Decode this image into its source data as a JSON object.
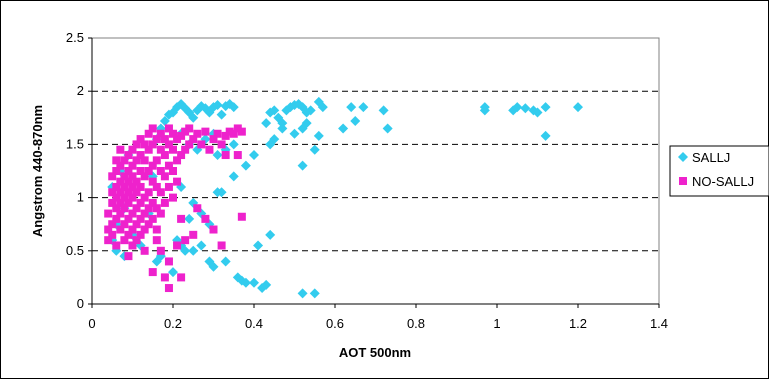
{
  "chart_data": {
    "type": "scatter",
    "title": "",
    "xlabel": "AOT 500nm",
    "ylabel": "Angstrom 440-870nm",
    "xlim": [
      0,
      1.4
    ],
    "ylim": [
      0,
      2.5
    ],
    "x_ticks": [
      "0",
      "0.2",
      "0.4",
      "0.6",
      "0.8",
      "1",
      "1.2",
      "1.4"
    ],
    "y_ticks": [
      "0",
      "0.5",
      "1",
      "1.5",
      "2",
      "2.5"
    ],
    "grid": "horizontal dashed",
    "legend_position": "right",
    "series": [
      {
        "name": "SALLJ",
        "color": "#33CCEE",
        "marker": "diamond",
        "points": [
          [
            0.05,
            0.6
          ],
          [
            0.06,
            0.75
          ],
          [
            0.05,
            1.1
          ],
          [
            0.07,
            1.25
          ],
          [
            0.08,
            0.9
          ],
          [
            0.09,
            1.4
          ],
          [
            0.1,
            0.65
          ],
          [
            0.06,
            0.5
          ],
          [
            0.08,
            0.45
          ],
          [
            0.12,
            0.55
          ],
          [
            0.14,
            0.85
          ],
          [
            0.15,
            1.2
          ],
          [
            0.16,
            1.55
          ],
          [
            0.17,
            1.65
          ],
          [
            0.18,
            1.72
          ],
          [
            0.19,
            1.78
          ],
          [
            0.2,
            1.8
          ],
          [
            0.21,
            1.85
          ],
          [
            0.22,
            1.88
          ],
          [
            0.23,
            1.84
          ],
          [
            0.24,
            1.8
          ],
          [
            0.25,
            1.75
          ],
          [
            0.26,
            1.82
          ],
          [
            0.27,
            1.86
          ],
          [
            0.28,
            1.84
          ],
          [
            0.29,
            1.8
          ],
          [
            0.3,
            1.85
          ],
          [
            0.31,
            1.87
          ],
          [
            0.32,
            1.78
          ],
          [
            0.33,
            1.86
          ],
          [
            0.34,
            1.88
          ],
          [
            0.35,
            1.85
          ],
          [
            0.22,
            1.6
          ],
          [
            0.24,
            1.5
          ],
          [
            0.26,
            1.45
          ],
          [
            0.28,
            1.55
          ],
          [
            0.3,
            1.6
          ],
          [
            0.31,
            1.4
          ],
          [
            0.33,
            1.45
          ],
          [
            0.35,
            1.5
          ],
          [
            0.22,
            1.1
          ],
          [
            0.25,
            0.95
          ],
          [
            0.27,
            0.85
          ],
          [
            0.29,
            0.75
          ],
          [
            0.31,
            1.05
          ],
          [
            0.32,
            1.05
          ],
          [
            0.24,
            0.8
          ],
          [
            0.21,
            0.6
          ],
          [
            0.22,
            0.55
          ],
          [
            0.23,
            0.5
          ],
          [
            0.25,
            0.5
          ],
          [
            0.27,
            0.55
          ],
          [
            0.29,
            0.4
          ],
          [
            0.2,
            0.3
          ],
          [
            0.17,
            0.45
          ],
          [
            0.16,
            0.4
          ],
          [
            0.3,
            0.35
          ],
          [
            0.33,
            0.4
          ],
          [
            0.36,
            0.25
          ],
          [
            0.37,
            0.22
          ],
          [
            0.38,
            0.2
          ],
          [
            0.4,
            0.2
          ],
          [
            0.42,
            0.15
          ],
          [
            0.43,
            0.18
          ],
          [
            0.41,
            0.55
          ],
          [
            0.44,
            0.65
          ],
          [
            0.35,
            1.2
          ],
          [
            0.38,
            1.3
          ],
          [
            0.4,
            1.4
          ],
          [
            0.43,
            1.7
          ],
          [
            0.44,
            1.8
          ],
          [
            0.45,
            1.82
          ],
          [
            0.46,
            1.75
          ],
          [
            0.47,
            1.7
          ],
          [
            0.48,
            1.82
          ],
          [
            0.49,
            1.85
          ],
          [
            0.5,
            1.87
          ],
          [
            0.51,
            1.88
          ],
          [
            0.52,
            1.85
          ],
          [
            0.53,
            1.8
          ],
          [
            0.54,
            1.82
          ],
          [
            0.45,
            1.55
          ],
          [
            0.44,
            1.5
          ],
          [
            0.47,
            1.65
          ],
          [
            0.5,
            1.6
          ],
          [
            0.52,
            1.65
          ],
          [
            0.53,
            1.7
          ],
          [
            0.56,
            1.58
          ],
          [
            0.55,
            1.45
          ],
          [
            0.56,
            1.9
          ],
          [
            0.57,
            1.85
          ],
          [
            0.52,
            1.3
          ],
          [
            0.62,
            1.65
          ],
          [
            0.64,
            1.85
          ],
          [
            0.65,
            1.72
          ],
          [
            0.67,
            1.85
          ],
          [
            0.72,
            1.82
          ],
          [
            0.73,
            1.65
          ],
          [
            0.52,
            0.1
          ],
          [
            0.55,
            0.1
          ],
          [
            0.97,
            1.82
          ],
          [
            0.97,
            1.85
          ],
          [
            1.04,
            1.82
          ],
          [
            1.05,
            1.85
          ],
          [
            1.07,
            1.84
          ],
          [
            1.09,
            1.82
          ],
          [
            1.1,
            1.8
          ],
          [
            1.12,
            1.85
          ],
          [
            1.12,
            1.58
          ],
          [
            1.2,
            1.85
          ]
        ]
      },
      {
        "name": "NO-SALLJ",
        "color": "#EE22CC",
        "marker": "square",
        "points": [
          [
            0.04,
            0.6
          ],
          [
            0.04,
            0.7
          ],
          [
            0.04,
            0.85
          ],
          [
            0.05,
            0.95
          ],
          [
            0.05,
            1.05
          ],
          [
            0.05,
            1.2
          ],
          [
            0.05,
            0.75
          ],
          [
            0.05,
            0.65
          ],
          [
            0.06,
            0.55
          ],
          [
            0.06,
            0.8
          ],
          [
            0.06,
            0.9
          ],
          [
            0.06,
            1.0
          ],
          [
            0.06,
            1.1
          ],
          [
            0.06,
            1.25
          ],
          [
            0.06,
            1.35
          ],
          [
            0.07,
            0.7
          ],
          [
            0.07,
            0.85
          ],
          [
            0.07,
            0.95
          ],
          [
            0.07,
            1.05
          ],
          [
            0.07,
            1.15
          ],
          [
            0.07,
            1.3
          ],
          [
            0.07,
            1.45
          ],
          [
            0.08,
            0.6
          ],
          [
            0.08,
            0.75
          ],
          [
            0.08,
            0.9
          ],
          [
            0.08,
            1.0
          ],
          [
            0.08,
            1.1
          ],
          [
            0.08,
            1.2
          ],
          [
            0.08,
            1.35
          ],
          [
            0.09,
            0.65
          ],
          [
            0.09,
            0.8
          ],
          [
            0.09,
            0.95
          ],
          [
            0.09,
            1.05
          ],
          [
            0.09,
            1.15
          ],
          [
            0.09,
            1.25
          ],
          [
            0.09,
            1.4
          ],
          [
            0.1,
            0.55
          ],
          [
            0.1,
            0.7
          ],
          [
            0.1,
            0.85
          ],
          [
            0.1,
            1.0
          ],
          [
            0.1,
            1.1
          ],
          [
            0.1,
            1.2
          ],
          [
            0.1,
            1.3
          ],
          [
            0.1,
            1.45
          ],
          [
            0.11,
            0.6
          ],
          [
            0.11,
            0.75
          ],
          [
            0.11,
            0.9
          ],
          [
            0.11,
            1.05
          ],
          [
            0.11,
            1.15
          ],
          [
            0.11,
            1.35
          ],
          [
            0.11,
            1.5
          ],
          [
            0.12,
            0.65
          ],
          [
            0.12,
            0.8
          ],
          [
            0.12,
            0.95
          ],
          [
            0.12,
            1.1
          ],
          [
            0.12,
            1.25
          ],
          [
            0.12,
            1.4
          ],
          [
            0.12,
            1.55
          ],
          [
            0.13,
            0.7
          ],
          [
            0.13,
            0.85
          ],
          [
            0.13,
            1.0
          ],
          [
            0.13,
            1.2
          ],
          [
            0.13,
            1.35
          ],
          [
            0.13,
            1.5
          ],
          [
            0.14,
            0.75
          ],
          [
            0.14,
            0.9
          ],
          [
            0.14,
            1.05
          ],
          [
            0.14,
            1.25
          ],
          [
            0.14,
            1.45
          ],
          [
            0.14,
            1.6
          ],
          [
            0.15,
            0.8
          ],
          [
            0.15,
            0.95
          ],
          [
            0.15,
            1.15
          ],
          [
            0.15,
            1.3
          ],
          [
            0.15,
            1.5
          ],
          [
            0.15,
            1.65
          ],
          [
            0.16,
            0.7
          ],
          [
            0.16,
            0.9
          ],
          [
            0.16,
            1.1
          ],
          [
            0.16,
            1.35
          ],
          [
            0.16,
            1.55
          ],
          [
            0.17,
            0.85
          ],
          [
            0.17,
            1.05
          ],
          [
            0.17,
            1.25
          ],
          [
            0.17,
            1.45
          ],
          [
            0.17,
            1.6
          ],
          [
            0.18,
            0.95
          ],
          [
            0.18,
            1.2
          ],
          [
            0.18,
            1.4
          ],
          [
            0.18,
            1.55
          ],
          [
            0.19,
            1.1
          ],
          [
            0.19,
            1.3
          ],
          [
            0.19,
            1.5
          ],
          [
            0.19,
            1.65
          ],
          [
            0.2,
            1.0
          ],
          [
            0.2,
            1.25
          ],
          [
            0.2,
            1.45
          ],
          [
            0.2,
            1.6
          ],
          [
            0.21,
            1.15
          ],
          [
            0.21,
            1.35
          ],
          [
            0.21,
            1.55
          ],
          [
            0.22,
            1.4
          ],
          [
            0.22,
            1.58
          ],
          [
            0.23,
            1.45
          ],
          [
            0.23,
            1.62
          ],
          [
            0.24,
            1.5
          ],
          [
            0.24,
            1.65
          ],
          [
            0.25,
            1.55
          ],
          [
            0.26,
            1.6
          ],
          [
            0.27,
            1.5
          ],
          [
            0.28,
            1.62
          ],
          [
            0.29,
            1.45
          ],
          [
            0.3,
            1.55
          ],
          [
            0.31,
            1.6
          ],
          [
            0.32,
            1.5
          ],
          [
            0.33,
            1.58
          ],
          [
            0.34,
            1.62
          ],
          [
            0.35,
            1.6
          ],
          [
            0.36,
            1.65
          ],
          [
            0.37,
            1.62
          ],
          [
            0.33,
            1.4
          ],
          [
            0.36,
            1.4
          ],
          [
            0.16,
            0.6
          ],
          [
            0.17,
            0.5
          ],
          [
            0.19,
            0.4
          ],
          [
            0.21,
            0.55
          ],
          [
            0.23,
            0.6
          ],
          [
            0.25,
            0.65
          ],
          [
            0.22,
            0.8
          ],
          [
            0.26,
            0.9
          ],
          [
            0.28,
            0.8
          ],
          [
            0.3,
            0.7
          ],
          [
            0.32,
            0.55
          ],
          [
            0.37,
            0.82
          ],
          [
            0.19,
            0.15
          ],
          [
            0.22,
            0.25
          ],
          [
            0.18,
            0.25
          ],
          [
            0.15,
            0.3
          ],
          [
            0.13,
            0.5
          ],
          [
            0.09,
            0.45
          ]
        ]
      }
    ]
  }
}
